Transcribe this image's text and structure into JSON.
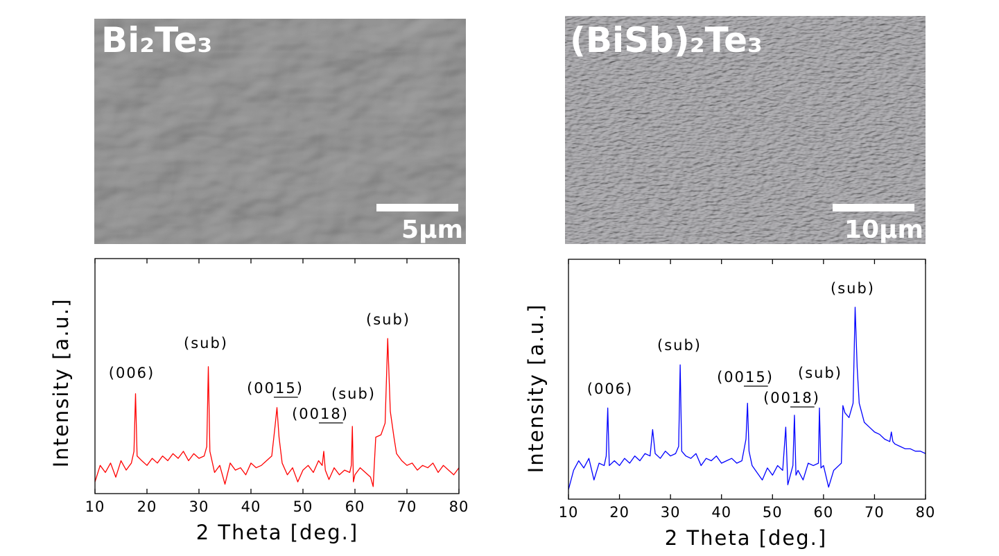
{
  "images": [
    {
      "label": "Bi₂Te₃",
      "scale_bar": "5μm"
    },
    {
      "label": "(BiSb)₂Te₃",
      "scale_bar": "10μm"
    }
  ],
  "chart_data": [
    {
      "type": "line",
      "color": "#ff0000",
      "xlabel": "2 Theta [deg.]",
      "ylabel": "Intensity [a.u.]",
      "xlim": [
        10,
        80
      ],
      "xticks": [
        10,
        20,
        30,
        40,
        50,
        60,
        70,
        80
      ],
      "ylim": [
        0,
        100
      ],
      "annotations": [
        "(006)",
        "(sub)",
        "(0015)",
        "(0018)",
        "(sub)",
        "(sub)"
      ],
      "x": [
        10,
        11,
        12,
        13,
        14,
        15,
        16,
        17,
        17.5,
        17.8,
        18.1,
        19,
        20,
        21,
        22,
        23,
        24,
        25,
        26,
        27,
        28,
        29,
        30,
        31,
        31.5,
        31.8,
        32.1,
        33,
        34,
        35,
        36,
        37,
        38,
        39,
        40,
        41,
        42,
        43,
        44,
        44.6,
        45,
        45.4,
        46,
        47,
        48,
        49,
        50,
        51,
        52,
        53,
        53.7,
        54,
        54.3,
        55,
        56,
        57,
        58,
        59,
        59.3,
        59.5,
        59.7,
        60,
        61,
        62,
        63,
        63.5,
        64,
        65,
        65.8,
        66.3,
        66.8,
        67.5,
        68,
        69,
        70,
        71,
        72,
        73,
        74,
        75,
        76,
        77,
        78,
        79,
        80
      ],
      "values": [
        5,
        12,
        9,
        13,
        7,
        14,
        10,
        13,
        18,
        42.5,
        16,
        14,
        12,
        15,
        13,
        16,
        14,
        17,
        15,
        18,
        14,
        17,
        15,
        16,
        20,
        54,
        18,
        9,
        12,
        4,
        13,
        10,
        11,
        8,
        13,
        11,
        12,
        14,
        16,
        28,
        36.6,
        24,
        13,
        8,
        11,
        5,
        10,
        12,
        9,
        14,
        12,
        18,
        10,
        6,
        11,
        8,
        10,
        9,
        12,
        28.6,
        5,
        8,
        11,
        9,
        7,
        3,
        24,
        25,
        30,
        66,
        35,
        24,
        17,
        14,
        12,
        13,
        10,
        12,
        11,
        13,
        9,
        12,
        10,
        8,
        11
      ]
    },
    {
      "type": "line",
      "color": "#0000ff",
      "xlabel": "2 Theta [deg.]",
      "ylabel": "Intensity [a.u.]",
      "xlim": [
        10,
        80
      ],
      "xticks": [
        10,
        20,
        30,
        40,
        50,
        60,
        70,
        80
      ],
      "ylim": [
        0,
        100
      ],
      "annotations": [
        "(006)",
        "(sub)",
        "(0015)",
        "(0018)",
        "(sub)",
        "(sub)"
      ],
      "x": [
        10,
        11,
        12,
        13,
        14,
        15,
        16,
        17,
        17.4,
        17.7,
        18,
        19,
        20,
        21,
        22,
        23,
        24,
        25,
        26,
        26.5,
        27,
        28,
        29,
        30,
        31,
        31.6,
        31.9,
        32.2,
        33,
        34,
        35,
        36,
        37,
        38,
        39,
        40,
        41,
        42,
        43,
        44,
        44.8,
        45.1,
        45.4,
        46,
        47,
        48,
        49,
        50,
        51,
        52,
        52.6,
        53,
        54,
        54.3,
        54.6,
        55,
        56,
        57,
        58,
        59,
        59.2,
        59.5,
        60,
        61,
        62,
        63,
        63.5,
        63.8,
        64.2,
        65,
        65.8,
        66.2,
        66.6,
        67,
        68,
        69,
        70,
        71,
        72,
        73,
        73.3,
        73.6,
        74,
        75,
        76,
        77,
        78,
        79,
        80
      ],
      "values": [
        4,
        12,
        16,
        13,
        17,
        8,
        15,
        14,
        18,
        38,
        14,
        16,
        14,
        17,
        15,
        18,
        16,
        19,
        18,
        29,
        19,
        17,
        20,
        18,
        19,
        22,
        56,
        20,
        18,
        17,
        19,
        14,
        17,
        16,
        18,
        15,
        16,
        17,
        15,
        16,
        25,
        40,
        20,
        14,
        11,
        8,
        13,
        10,
        14,
        12,
        30,
        6,
        14,
        35,
        10,
        12,
        8,
        15,
        14,
        15,
        38,
        13,
        14,
        5,
        12,
        14,
        15,
        39,
        36,
        34,
        40,
        80,
        55,
        40,
        32,
        30,
        28,
        27,
        25,
        24,
        28,
        24,
        23,
        22,
        21,
        21,
        20,
        20,
        19
      ]
    }
  ]
}
